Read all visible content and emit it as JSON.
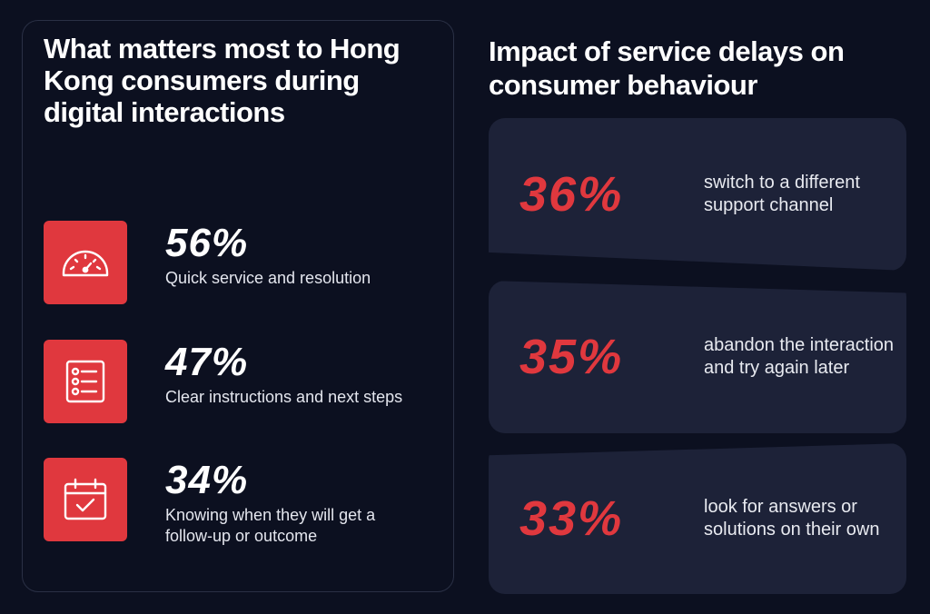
{
  "left": {
    "title": "What matters most to Hong Kong consumers during digital interactions",
    "stats": [
      {
        "value": "56%",
        "label": "Quick service and resolution",
        "icon": "speedometer-icon"
      },
      {
        "value": "47%",
        "label": "Clear instructions and next steps",
        "icon": "checklist-icon"
      },
      {
        "value": "34%",
        "label": "Knowing when they will get a follow-up or outcome",
        "icon": "calendar-check-icon"
      }
    ]
  },
  "right": {
    "title": "Impact of service delays on consumer behaviour",
    "impacts": [
      {
        "value": "36%",
        "text": "switch to a different support channel"
      },
      {
        "value": "35%",
        "text": "abandon the interaction and try again later"
      },
      {
        "value": "33%",
        "text": "look for answers or solutions on their own"
      }
    ]
  },
  "colors": {
    "background": "#0c1020",
    "card": "#1d2238",
    "accent": "#e0383e",
    "text": "#ffffff"
  }
}
